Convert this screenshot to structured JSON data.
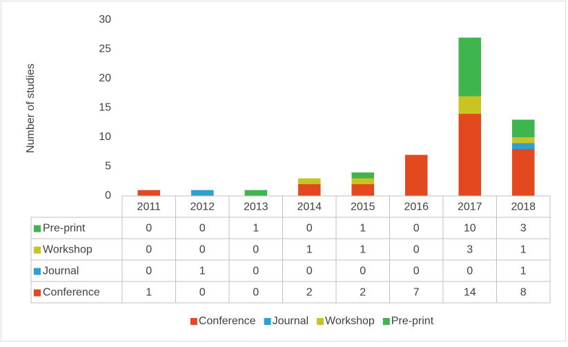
{
  "chart_data": {
    "type": "bar",
    "stacked": true,
    "y_label": "Number of studies",
    "categories": [
      "2011",
      "2012",
      "2013",
      "2014",
      "2015",
      "2016",
      "2017",
      "2018"
    ],
    "series": [
      {
        "name": "Conference",
        "color": "#e2491f",
        "values": [
          1,
          0,
          0,
          2,
          2,
          7,
          14,
          8
        ]
      },
      {
        "name": "Journal",
        "color": "#2e9fd1",
        "values": [
          0,
          1,
          0,
          0,
          0,
          0,
          0,
          1
        ]
      },
      {
        "name": "Workshop",
        "color": "#c9c323",
        "values": [
          0,
          0,
          0,
          1,
          1,
          0,
          3,
          1
        ]
      },
      {
        "name": "Pre-print",
        "color": "#3fb54d",
        "values": [
          0,
          0,
          1,
          0,
          1,
          0,
          10,
          3
        ]
      }
    ],
    "ylim": [
      0,
      30
    ],
    "yticks": [
      0,
      5,
      10,
      15,
      20,
      25,
      30
    ],
    "grid": false,
    "data_table": true,
    "legend": "bottom"
  }
}
